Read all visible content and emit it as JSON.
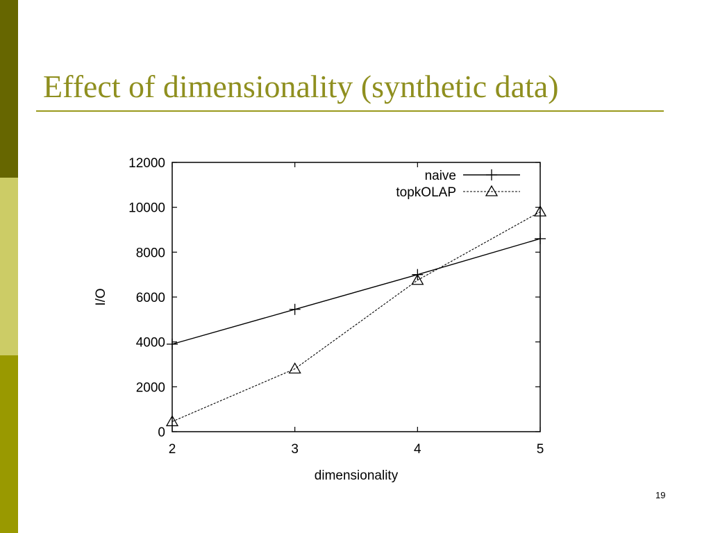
{
  "slide": {
    "title": "Effect of dimensionality (synthetic data)",
    "number": "19",
    "colors": {
      "bar_dark": "#666600",
      "bar_light": "#cccc66",
      "bar_mid": "#999900",
      "title": "#8f8f1f"
    }
  },
  "chart_data": {
    "type": "line",
    "title": "",
    "xlabel": "dimensionality",
    "ylabel": "I/O",
    "xlim": [
      2,
      5
    ],
    "ylim": [
      0,
      12000
    ],
    "xticks": [
      2,
      3,
      4,
      5
    ],
    "yticks": [
      0,
      2000,
      4000,
      6000,
      8000,
      10000,
      12000
    ],
    "grid": false,
    "legend_position": "top-right",
    "series": [
      {
        "name": "naive",
        "marker": "plus",
        "line": "solid",
        "x": [
          2,
          3,
          4,
          5
        ],
        "values": [
          3900,
          5450,
          7000,
          8600
        ]
      },
      {
        "name": "topkOLAP",
        "marker": "triangle",
        "line": "dashed",
        "x": [
          2,
          3,
          4,
          5
        ],
        "values": [
          450,
          2800,
          6750,
          9800
        ]
      }
    ]
  }
}
